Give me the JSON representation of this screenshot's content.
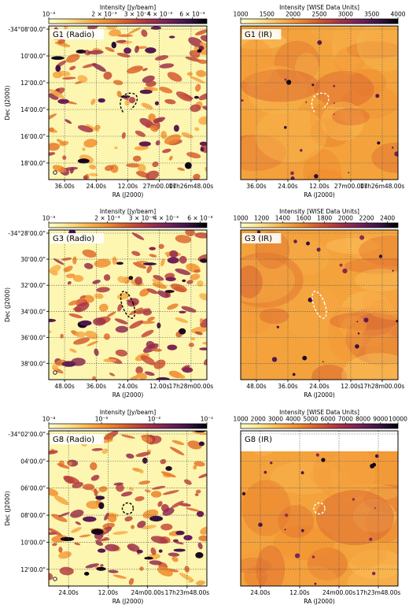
{
  "colors": {
    "cmap_stops": [
      "#ffffc8",
      "#fde38a",
      "#f9b64e",
      "#ef8a2c",
      "#d3582f",
      "#a93345",
      "#772159",
      "#3f1448",
      "#000004"
    ],
    "grid": "#555555",
    "radio_background": "#fdf6b0",
    "ir_background": "#f4a33c",
    "marker_outline_ir": "#ffffff",
    "marker_outline_radio": "#000000",
    "label_box": "#ffffff"
  },
  "chart_data": [
    {
      "type": "heatmap",
      "panel": "G1 (Radio)",
      "label": "G1 (Radio)",
      "modality": "radio",
      "colorbar": {
        "title": "Intensity [Jy/beam]",
        "scale": "log",
        "range": [
          0.001,
          0.0072
        ],
        "tick_labels": [
          "10⁻³",
          "2 × 10⁻³",
          "3 × 10⁻³",
          "4 × 10⁻³",
          "6 × 10⁻³"
        ],
        "tick_values": [
          0.001,
          0.002,
          0.003,
          0.004,
          0.006
        ]
      },
      "xlabel": "RA (J2000)",
      "ylabel": "Dec (J2000)",
      "x_tick_labels": [
        "36.00s",
        "24.00s",
        "12.00s",
        "27m00.00s",
        "17h26m48.00s"
      ],
      "y_tick_labels": [
        "-34°08'00.0\"",
        "10'00.0\"",
        "12'00.0\"",
        "14'00.0\"",
        "16'00.0\"",
        "18'00.0\""
      ],
      "grid": true,
      "marker": "dashed crescent arc",
      "beam": true,
      "blank_top_band": false
    },
    {
      "type": "heatmap",
      "panel": "G1 (IR)",
      "label": "G1 (IR)",
      "modality": "ir",
      "colorbar": {
        "title": "Intensity [WISE Data Units]",
        "scale": "linear",
        "range": [
          1000,
          4000
        ],
        "tick_labels": [
          "1000",
          "1500",
          "2000",
          "2500",
          "3000",
          "3500",
          "4000"
        ],
        "tick_values": [
          1000,
          1500,
          2000,
          2500,
          3000,
          3500,
          4000
        ]
      },
      "xlabel": "RA (J2000)",
      "ylabel": "",
      "x_tick_labels": [
        "36.00s",
        "24.00s",
        "12.00s",
        "27m00.00s",
        "17h26m48.00s"
      ],
      "y_tick_labels": [],
      "grid": true,
      "marker": "dashed crescent arc",
      "beam": false,
      "blank_top_band": false
    },
    {
      "type": "heatmap",
      "panel": "G3 (Radio)",
      "label": "G3 (Radio)",
      "modality": "radio",
      "colorbar": {
        "title": "Intensity [Jy/beam]",
        "scale": "log",
        "range": [
          0.001,
          0.0065
        ],
        "tick_labels": [
          "10⁻³",
          "2 × 10⁻³",
          "3 × 10⁻³",
          "4 × 10⁻³",
          "6 × 10⁻³"
        ],
        "tick_values": [
          0.001,
          0.002,
          0.003,
          0.004,
          0.006
        ]
      },
      "xlabel": "RA (J2000)",
      "ylabel": "Dec (J2000)",
      "x_tick_labels": [
        "48.00s",
        "36.00s",
        "24.00s",
        "12.00s",
        "17h28m00.00s"
      ],
      "y_tick_labels": [
        "-34°28'00.0\"",
        "30'00.0\"",
        "32'00.0\"",
        "34'00.0\"",
        "36'00.0\"",
        "38'00.0\""
      ],
      "grid": true,
      "marker": "dashed elongated loop",
      "beam": true,
      "blank_top_band": false
    },
    {
      "type": "heatmap",
      "panel": "G3 (IR)",
      "label": "G3 (IR)",
      "modality": "ir",
      "colorbar": {
        "title": "Intensity [WISE Data Units]",
        "scale": "linear",
        "range": [
          1000,
          2500
        ],
        "tick_labels": [
          "1000",
          "1200",
          "1400",
          "1600",
          "1800",
          "2000",
          "2200",
          "2400"
        ],
        "tick_values": [
          1000,
          1200,
          1400,
          1600,
          1800,
          2000,
          2200,
          2400
        ]
      },
      "xlabel": "RA (J2000)",
      "ylabel": "",
      "x_tick_labels": [
        "48.00s",
        "36.00s",
        "24.00s",
        "12.00s",
        "17h28m00.00s"
      ],
      "y_tick_labels": [],
      "grid": true,
      "marker": "dashed elongated loop",
      "beam": false,
      "blank_top_band": false
    },
    {
      "type": "heatmap",
      "panel": "G8 (Radio)",
      "label": "G8 (Radio)",
      "modality": "radio",
      "colorbar": {
        "title": "Intensity [Jy/beam]",
        "scale": "log",
        "range": [
          0.0001,
          0.1
        ],
        "tick_labels": [
          "10⁻⁴",
          "10⁻³",
          "10⁻²",
          "10⁻¹"
        ],
        "tick_values": [
          0.0001,
          0.001,
          0.01,
          0.1
        ]
      },
      "xlabel": "RA (J2000)",
      "ylabel": "Dec (J2000)",
      "x_tick_labels": [
        "24.00s",
        "12.00s",
        "24m00.00s",
        "17h23m48.00s"
      ],
      "y_tick_labels": [
        "-34°02'00.0\"",
        "04'00.0\"",
        "06'00.0\"",
        "08'00.0\"",
        "10'00.0\"",
        "12'00.0\""
      ],
      "grid": true,
      "marker": "dashed circle",
      "beam": true,
      "blank_top_band": false
    },
    {
      "type": "heatmap",
      "panel": "G8 (IR)",
      "label": "G8 (IR)",
      "modality": "ir",
      "colorbar": {
        "title": "Intensity [WISE Data Units]",
        "scale": "linear",
        "range": [
          1000,
          10000
        ],
        "tick_labels": [
          "1000",
          "2000",
          "3000",
          "4000",
          "5000",
          "6000",
          "7000",
          "8000",
          "9000",
          "10000"
        ],
        "tick_values": [
          1000,
          2000,
          3000,
          4000,
          5000,
          6000,
          7000,
          8000,
          9000,
          10000
        ]
      },
      "xlabel": "RA (J2000)",
      "ylabel": "",
      "x_tick_labels": [
        "24.00s",
        "12.00s",
        "24m00.00s",
        "17h23m48.00s"
      ],
      "y_tick_labels": [],
      "grid": true,
      "marker": "dashed circle",
      "beam": false,
      "blank_top_band": true
    }
  ]
}
